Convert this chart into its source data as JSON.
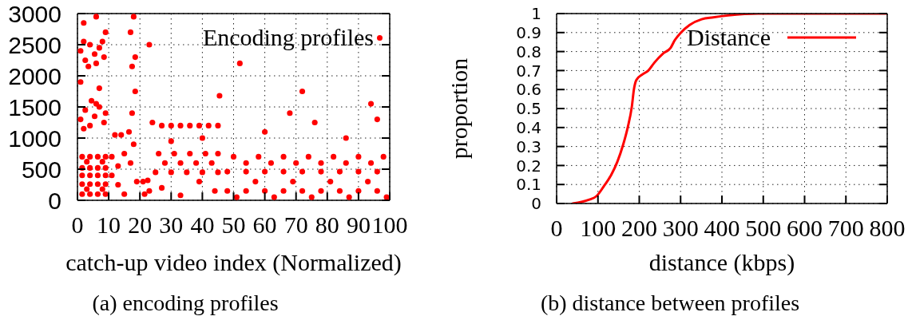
{
  "chart_data": [
    {
      "type": "scatter",
      "xlabel": "catch-up video index (Normalized)",
      "annotations": [
        "(a) encoding profiles"
      ],
      "xlim": [
        0,
        100
      ],
      "ylim": [
        0,
        3000
      ],
      "xticks": [
        0,
        10,
        20,
        30,
        40,
        50,
        60,
        70,
        80,
        90,
        100
      ],
      "yticks": [
        0,
        500,
        1000,
        1500,
        2000,
        2500,
        3000
      ],
      "grid": true,
      "legend": "top right",
      "marker": "circle",
      "series": [
        {
          "name": "Encoding profiles",
          "color": "#ff0000",
          "x": [
            1,
            2.5,
            4,
            5.5,
            7,
            8.5,
            2,
            6,
            8,
            3.5,
            2,
            6,
            9,
            1,
            7,
            1,
            2.5,
            4,
            5.5,
            7,
            8.5,
            2,
            6,
            9,
            4.5,
            1.5,
            4,
            6.5,
            9,
            1.5,
            4,
            6.5,
            9,
            1.5,
            4,
            6.5,
            9,
            1.5,
            4,
            6.5,
            9,
            1.5,
            4,
            6.5,
            9,
            3,
            8,
            3,
            8,
            11,
            13,
            15,
            11,
            13,
            15,
            12,
            14,
            16.5,
            17.5,
            18.5,
            18,
            17,
            19,
            17.5,
            18.5,
            17,
            18,
            21,
            22.5,
            21.5,
            23,
            23,
            24,
            27,
            30,
            33,
            36,
            39,
            42,
            45,
            26,
            31,
            36,
            41,
            45,
            28,
            33,
            38,
            43,
            25,
            30,
            35,
            40,
            45,
            27,
            33,
            39,
            44,
            30,
            40,
            45.5,
            50,
            58,
            66,
            74,
            82,
            90,
            98,
            54,
            62,
            70,
            78,
            86,
            94,
            48,
            54,
            60,
            66,
            72,
            78,
            84,
            90,
            96,
            48,
            54,
            60,
            66,
            72,
            78,
            84,
            90,
            96,
            57,
            69,
            81,
            93,
            51,
            63,
            75,
            87,
            99,
            52,
            60,
            68,
            72,
            76,
            86,
            94,
            96
          ],
          "values": [
            2400,
            2250,
            2500,
            2350,
            2450,
            2300,
            2550,
            2200,
            2550,
            2150,
            2850,
            2950,
            2700,
            1900,
            1800,
            1300,
            1450,
            1200,
            1350,
            1500,
            1250,
            1150,
            1550,
            1400,
            1600,
            700,
            700,
            700,
            700,
            520,
            520,
            520,
            520,
            400,
            400,
            400,
            400,
            260,
            260,
            260,
            260,
            100,
            100,
            100,
            100,
            620,
            620,
            180,
            180,
            700,
            550,
            750,
            400,
            250,
            100,
            1050,
            1050,
            1100,
            1400,
            1750,
            900,
            600,
            300,
            2150,
            2300,
            2700,
            2950,
            300,
            320,
            100,
            150,
            2500,
            1250,
            1200,
            1200,
            1200,
            1200,
            1200,
            1200,
            1200,
            750,
            750,
            750,
            750,
            750,
            600,
            600,
            600,
            600,
            450,
            450,
            450,
            450,
            450,
            200,
            80,
            300,
            150,
            950,
            1000,
            1680,
            700,
            700,
            700,
            700,
            700,
            700,
            700,
            600,
            600,
            600,
            600,
            600,
            600,
            460,
            460,
            460,
            460,
            460,
            460,
            460,
            460,
            460,
            150,
            150,
            150,
            150,
            150,
            150,
            150,
            150,
            150,
            300,
            300,
            300,
            300,
            50,
            50,
            50,
            50,
            50,
            2200,
            1100,
            1400,
            1750,
            1250,
            1000,
            1550,
            1300
          ]
        }
      ]
    },
    {
      "type": "line",
      "xlabel": "distance (kbps)",
      "ylabel": "proportion",
      "annotations": [
        "(b) distance between profiles"
      ],
      "xlim": [
        0,
        800
      ],
      "ylim": [
        0,
        1
      ],
      "xticks": [
        0,
        100,
        200,
        300,
        400,
        500,
        600,
        700,
        800
      ],
      "yticks": [
        0,
        0.1,
        0.2,
        0.3,
        0.4,
        0.5,
        0.6,
        0.7,
        0.8,
        0.9,
        1
      ],
      "grid": true,
      "legend": "top right",
      "marker": "none",
      "line_style": "solid",
      "series": [
        {
          "name": "Distance",
          "color": "#ff0000",
          "x": [
            39,
            79,
            97,
            114,
            132,
            147,
            161,
            172,
            182,
            187,
            193,
            208,
            222,
            236,
            258,
            276,
            286,
            301,
            322,
            351,
            379,
            415,
            487,
            600,
            800
          ],
          "values": [
            0,
            0.02,
            0.04,
            0.09,
            0.15,
            0.22,
            0.31,
            0.4,
            0.51,
            0.6,
            0.65,
            0.68,
            0.7,
            0.74,
            0.79,
            0.82,
            0.86,
            0.9,
            0.94,
            0.97,
            0.98,
            0.99,
            1,
            1,
            1
          ]
        }
      ]
    }
  ]
}
